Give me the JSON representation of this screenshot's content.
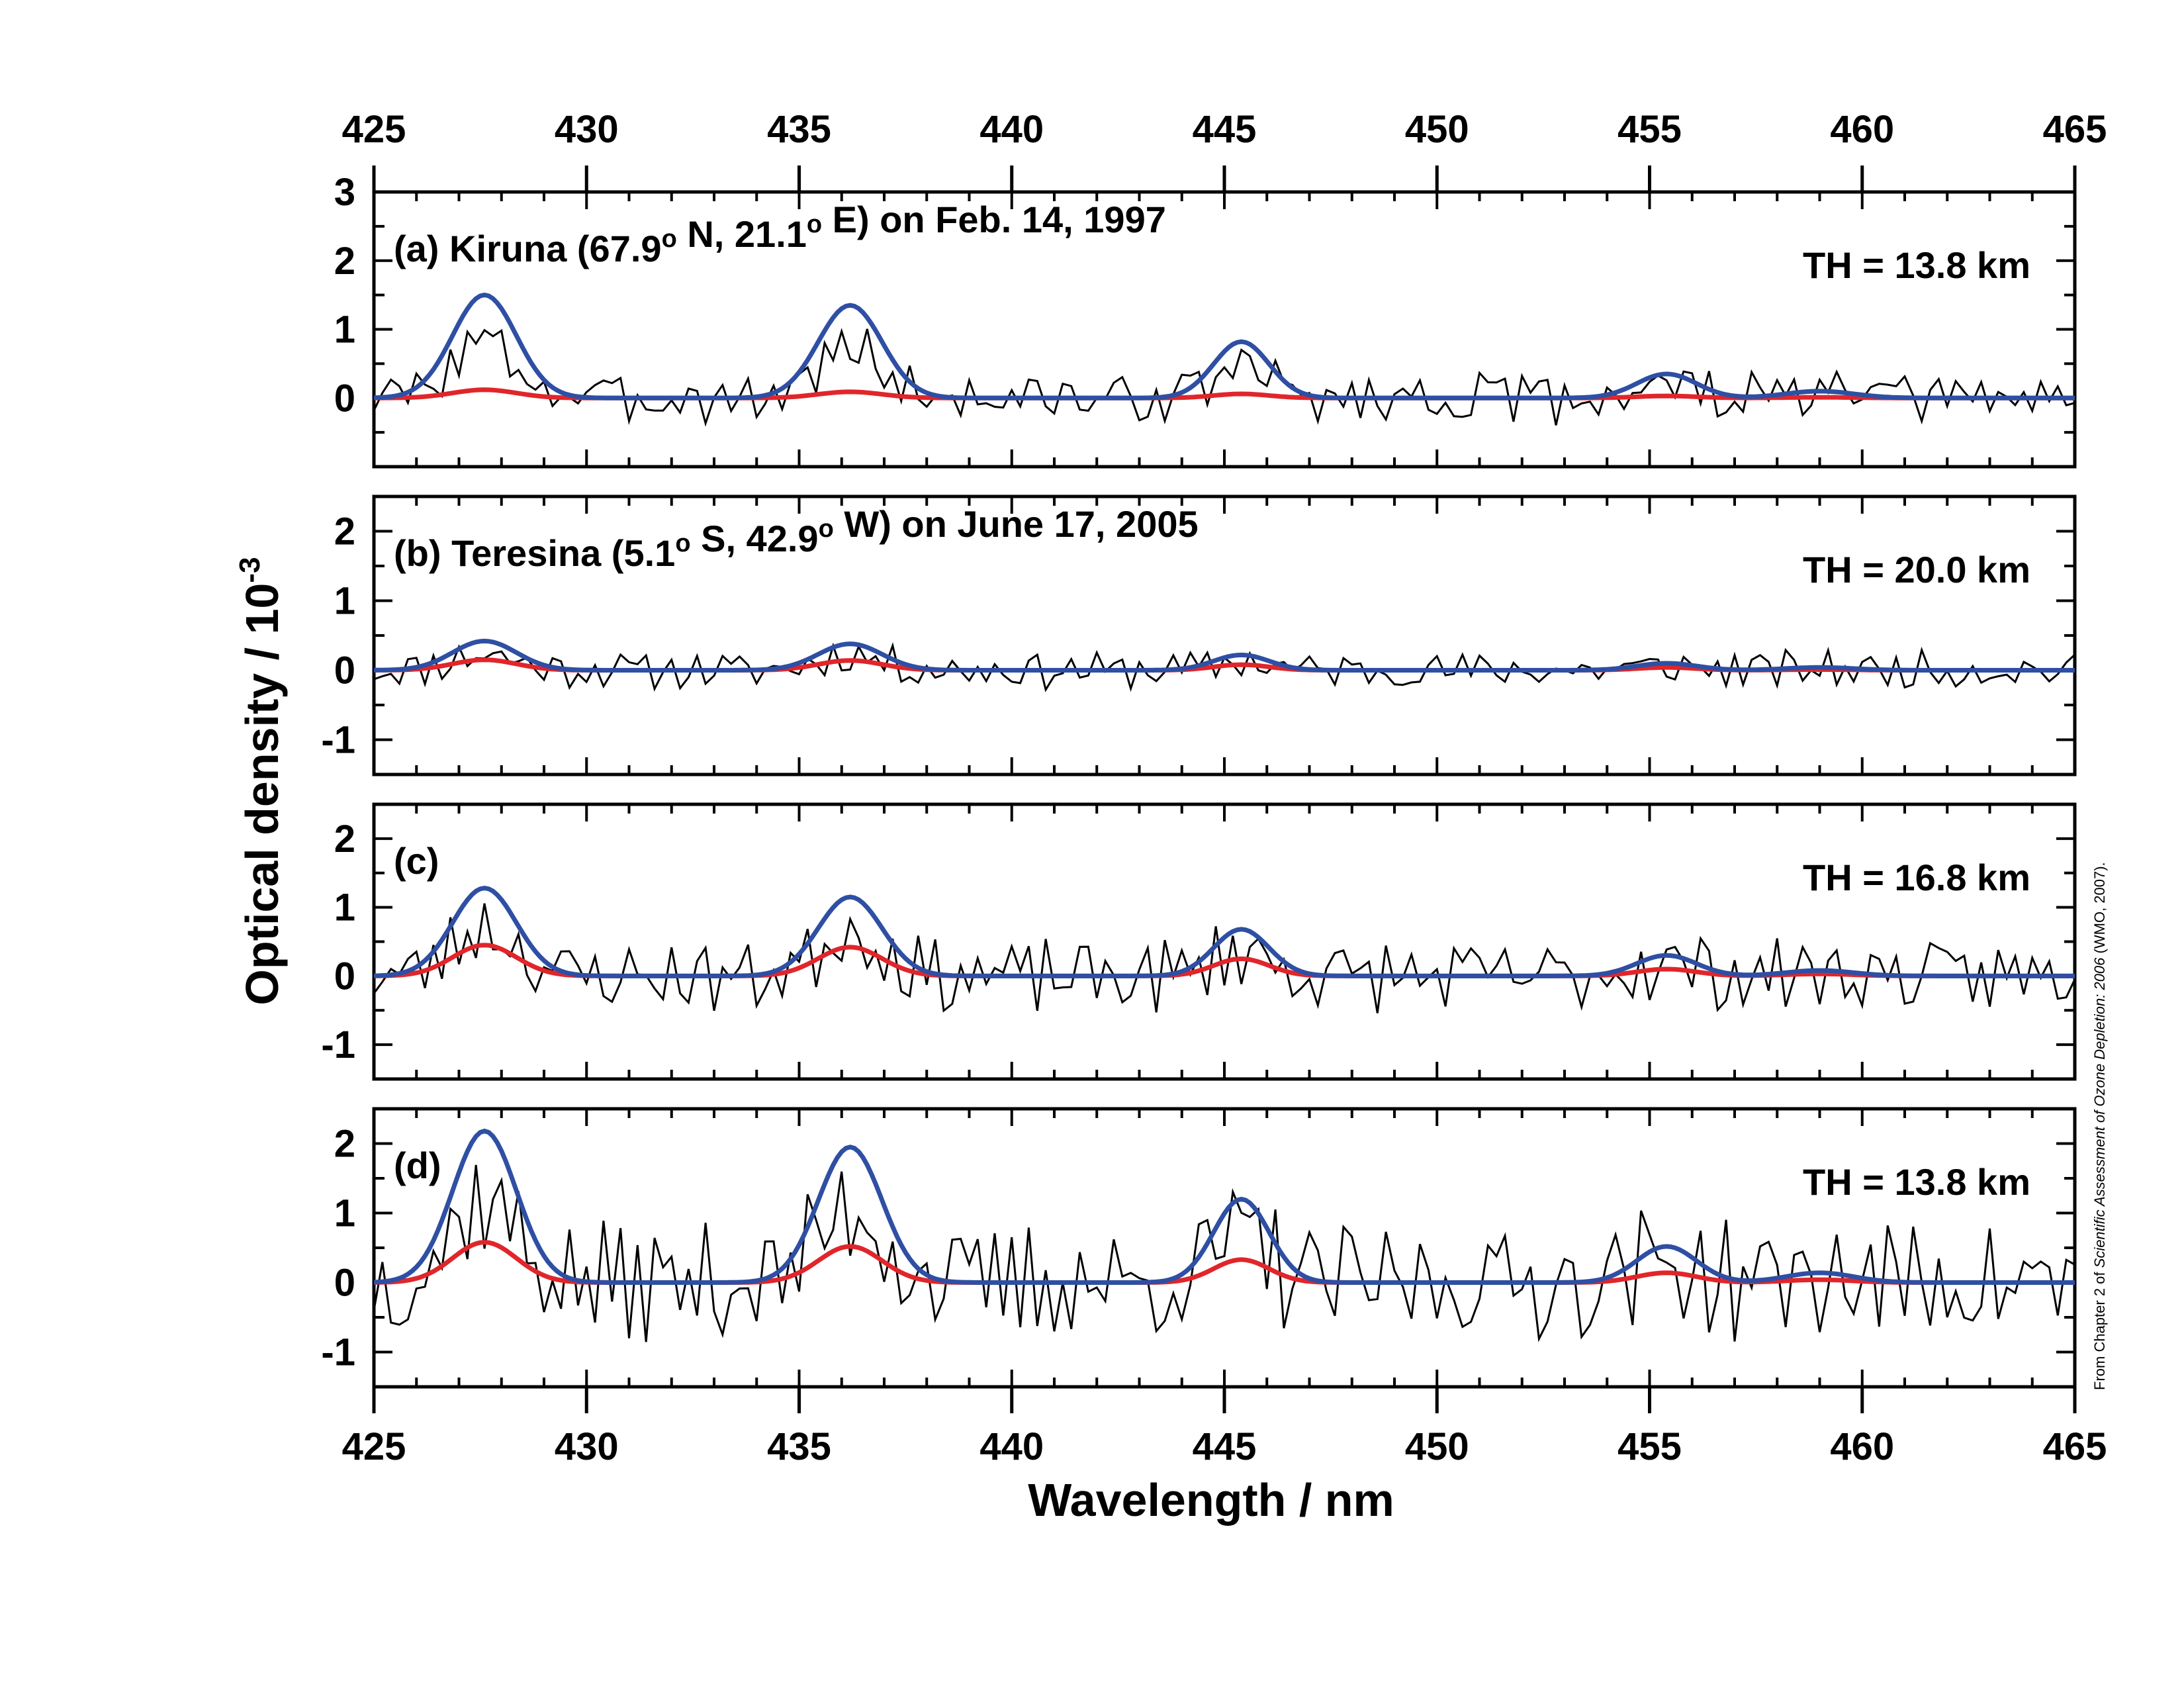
{
  "chart_data": {
    "type": "line",
    "xlabel": "Wavelength / nm",
    "ylabel": "Optical density / 10",
    "ylabel_exponent": "-3",
    "xlim": [
      425,
      465
    ],
    "x_ticks": [
      425,
      430,
      435,
      440,
      445,
      450,
      455,
      460,
      465
    ],
    "credit_prefix": "From Chapter 2 of ",
    "credit_title": "Scientific Assessment of Ozone Depletion: 2006",
    "credit_suffix": " (WMO, 2007).",
    "series_colors": {
      "measured": "#000000",
      "fit_blue": "#2e4fa3",
      "fit_red": "#e0262b"
    },
    "peak_centers": [
      427.6,
      436.2,
      445.4,
      455.4,
      459.0
    ],
    "peak_widths": [
      0.75,
      0.75,
      0.65,
      0.7,
      0.8
    ],
    "panels": [
      {
        "id": "a",
        "prefix": "(a) Kiruna (67.9",
        "deg1": "o",
        "mid": " N, 21.1",
        "deg2": "o",
        "suffix": " E) on Feb. 14, 1997",
        "th": "TH = 13.8 km",
        "ylim": [
          -1,
          3
        ],
        "y_ticks": [
          0,
          1,
          2,
          3
        ],
        "blue_amps": [
          1.5,
          1.35,
          0.82,
          0.35,
          0.1
        ],
        "red_amps": [
          0.12,
          0.09,
          0.06,
          0.03,
          0.01
        ],
        "noise": 0.35,
        "seed": 3
      },
      {
        "id": "b",
        "prefix": "(b) Teresina (5.1",
        "deg1": "o",
        "mid": " S, 42.9",
        "deg2": "o",
        "suffix": " W) on June 17, 2005",
        "th": "TH = 20.0 km",
        "ylim": [
          -1.5,
          2.5
        ],
        "y_ticks": [
          -1,
          0,
          1,
          2
        ],
        "blue_amps": [
          0.42,
          0.38,
          0.22,
          0.1,
          0.04
        ],
        "red_amps": [
          0.15,
          0.14,
          0.08,
          0.04,
          0.01
        ],
        "noise": 0.25,
        "seed": 11
      },
      {
        "id": "c",
        "prefix": "(c)",
        "deg1": "",
        "mid": "",
        "deg2": "",
        "suffix": "",
        "th": "TH = 16.8 km",
        "ylim": [
          -1.5,
          2.5
        ],
        "y_ticks": [
          -1,
          0,
          1,
          2
        ],
        "blue_amps": [
          1.28,
          1.15,
          0.68,
          0.3,
          0.08
        ],
        "red_amps": [
          0.45,
          0.42,
          0.25,
          0.1,
          0.03
        ],
        "noise": 0.5,
        "seed": 23
      },
      {
        "id": "d",
        "prefix": "(d)",
        "deg1": "",
        "mid": "",
        "deg2": "",
        "suffix": "",
        "th": "TH = 13.8 km",
        "ylim": [
          -1.5,
          2.5
        ],
        "y_ticks": [
          -1,
          0,
          1,
          2
        ],
        "blue_amps": [
          2.18,
          1.95,
          1.2,
          0.52,
          0.14
        ],
        "red_amps": [
          0.58,
          0.52,
          0.33,
          0.14,
          0.04
        ],
        "noise": 0.8,
        "seed": 37
      }
    ]
  }
}
